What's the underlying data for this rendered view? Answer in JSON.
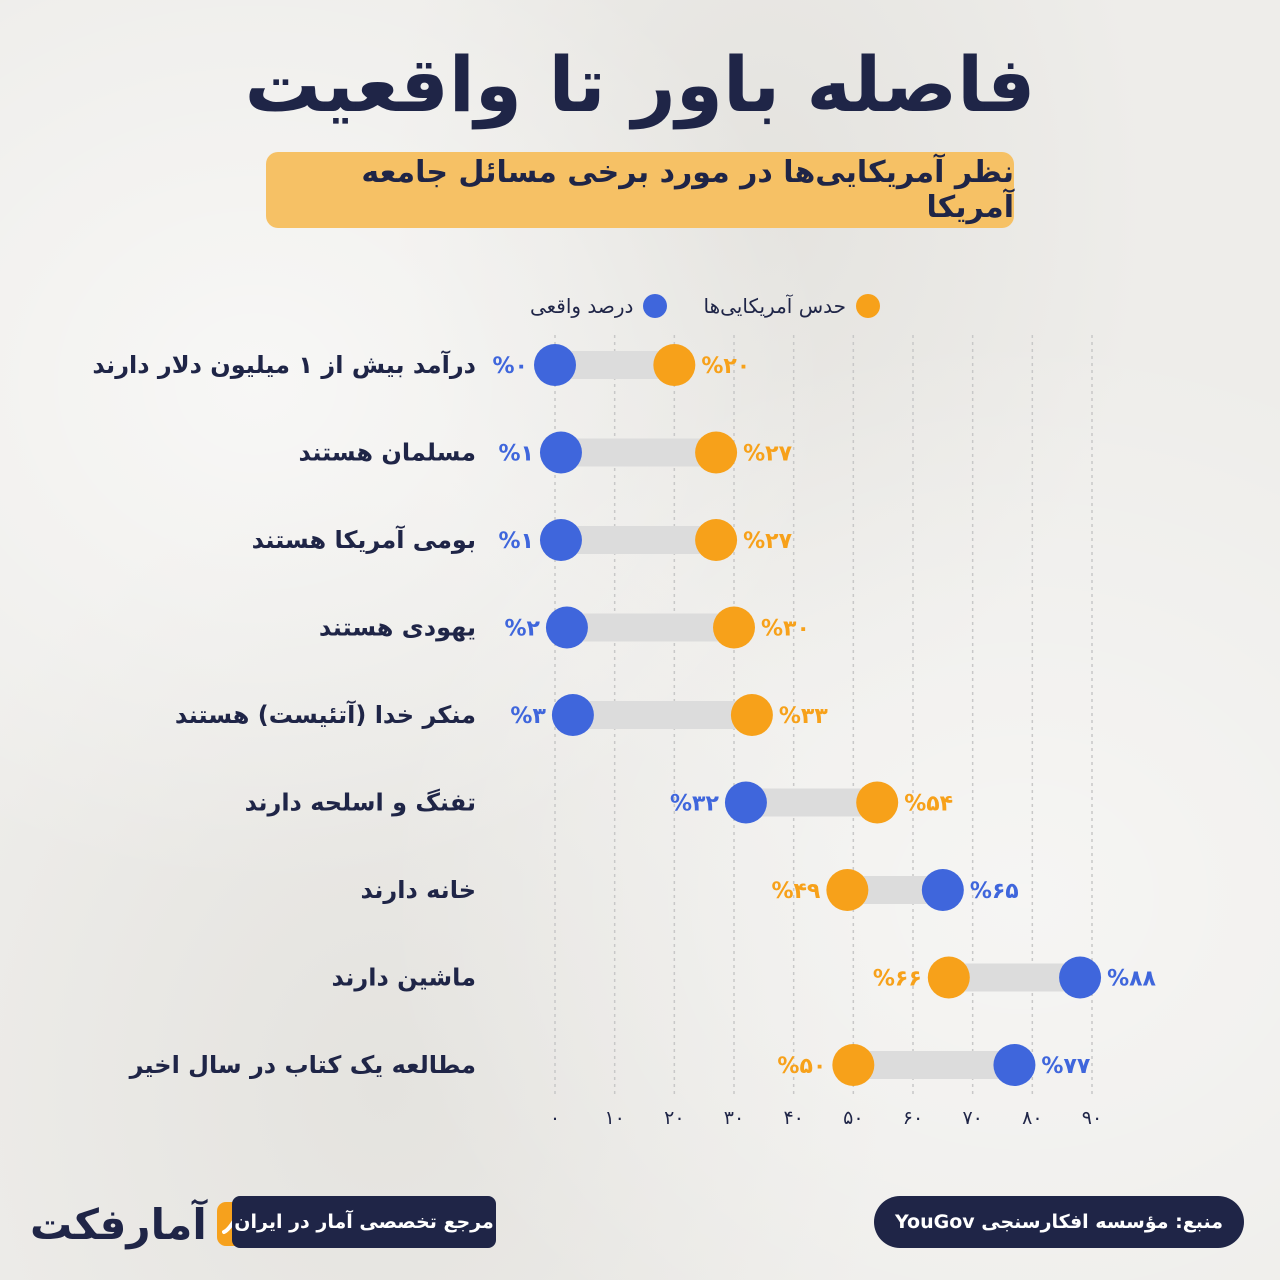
{
  "header": {
    "title": "فاصله باور تا واقعیت",
    "subtitle": "نظر آمریکایی‌ها در مورد برخی مسائل جامعه آمریکا"
  },
  "legend": {
    "guess_label": "حدس آمریکایی‌ها",
    "actual_label": "درصد واقعی"
  },
  "colors": {
    "guess": "#f7a11a",
    "actual": "#3f66dc",
    "connector": "#dcdcdc",
    "grid": "#c8c8c8",
    "text": "#1f2547",
    "subtitle_bg": "#f6c165"
  },
  "chart_data": {
    "type": "dumbbell",
    "title": "فاصله باور تا واقعیت",
    "subtitle": "نظر آمریکایی‌ها در مورد برخی مسائل جامعه آمریکا",
    "xlim": [
      0,
      90
    ],
    "x_ticks": [
      0,
      10,
      20,
      30,
      40,
      50,
      60,
      70,
      80,
      90
    ],
    "x_tick_labels": [
      "۰",
      "۱۰",
      "۲۰",
      "۳۰",
      "۴۰",
      "۵۰",
      "۶۰",
      "۷۰",
      "۸۰",
      "۹۰"
    ],
    "grid": true,
    "legend_position": "top",
    "series": [
      {
        "name": "حدس آمریکایی‌ها",
        "values": [
          20,
          27,
          27,
          30,
          33,
          54,
          49,
          66,
          50
        ]
      },
      {
        "name": "درصد واقعی",
        "values": [
          0,
          1,
          1,
          2,
          3,
          32,
          65,
          88,
          77
        ]
      }
    ],
    "categories": [
      "درآمد بیش از ۱ میلیون دلار دارند",
      "مسلمان هستند",
      "بومی آمریکا هستند",
      "یهودی هستند",
      "منکر خدا (آتئیست) هستند",
      "تفنگ و اسلحه دارند",
      "خانه دارند",
      "ماشین دارند",
      "مطالعه یک کتاب در سال اخیر"
    ],
    "guess_labels": [
      "%۲۰",
      "%۲۷",
      "%۲۷",
      "%۳۰",
      "%۳۳",
      "%۵۴",
      "%۴۹",
      "%۶۶",
      "%۵۰"
    ],
    "actual_labels": [
      "%۰",
      "%۱",
      "%۱",
      "%۲",
      "%۳",
      "%۳۲",
      "%۶۵",
      "%۸۸",
      "%۷۷"
    ]
  },
  "footer": {
    "reference": "مرجع تخصصی آمار در ایران",
    "source": "منبع: مؤسسه افکارسنجی YouGov",
    "logo_text": "آمارفکت"
  }
}
